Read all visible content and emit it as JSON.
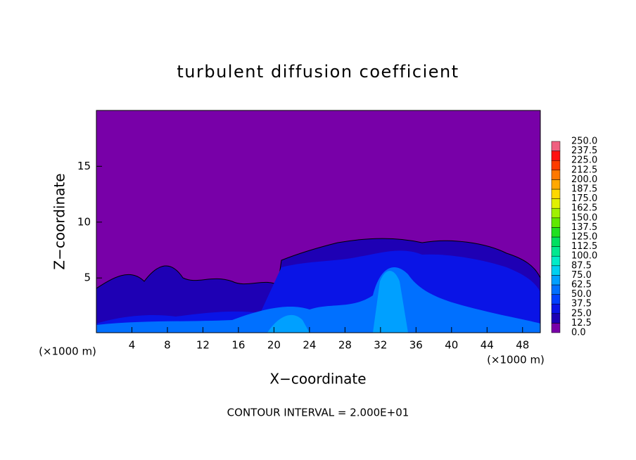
{
  "chart_data": {
    "type": "contour",
    "title": "turbulent diffusion coefficient",
    "xlabel": "X−coordinate",
    "ylabel": "Z−coordinate",
    "unit_label": "(×1000 m)",
    "annotation": "CONTOUR INTERVAL = 2.000E+01",
    "xlim": [
      0,
      50
    ],
    "xticks": [
      4,
      8,
      12,
      16,
      20,
      24,
      28,
      32,
      36,
      40,
      44,
      48
    ],
    "ylim": [
      0.1,
      20
    ],
    "yticks": [
      5,
      10,
      15
    ],
    "colorbar": {
      "levels": [
        {
          "value": 0,
          "label": "0.0"
        },
        {
          "value": 12.5,
          "label": "12.5"
        },
        {
          "value": 25,
          "label": "25.0"
        },
        {
          "value": 37.5,
          "label": "37.5"
        },
        {
          "value": 50,
          "label": "50.0"
        },
        {
          "value": 62.5,
          "label": "62.5"
        },
        {
          "value": 75,
          "label": "75.0"
        },
        {
          "value": 87.5,
          "label": "87.5"
        },
        {
          "value": 100,
          "label": "100.0"
        },
        {
          "value": 112.5,
          "label": "112.5"
        },
        {
          "value": 125,
          "label": "125.0"
        },
        {
          "value": 137.5,
          "label": "137.5"
        },
        {
          "value": 150,
          "label": "150.0"
        },
        {
          "value": 162.5,
          "label": "162.5"
        },
        {
          "value": 175,
          "label": "175.0"
        },
        {
          "value": 187.5,
          "label": "187.5"
        },
        {
          "value": 200,
          "label": "200.0"
        },
        {
          "value": 212.5,
          "label": "212.5"
        },
        {
          "value": 225,
          "label": "225.0"
        },
        {
          "value": 237.5,
          "label": "237.5"
        },
        {
          "value": 250,
          "label": "250.0"
        }
      ],
      "colors": [
        "#7800a8",
        "#1e00b4",
        "#0a14e6",
        "#0040ff",
        "#0070ff",
        "#00a0ff",
        "#00d0f0",
        "#00ecc8",
        "#00e890",
        "#00e060",
        "#20e020",
        "#60e800",
        "#a0f000",
        "#e0f000",
        "#ffd800",
        "#ffa800",
        "#ff7800",
        "#ff3c00",
        "#ff1010",
        "#f06080"
      ]
    }
  }
}
